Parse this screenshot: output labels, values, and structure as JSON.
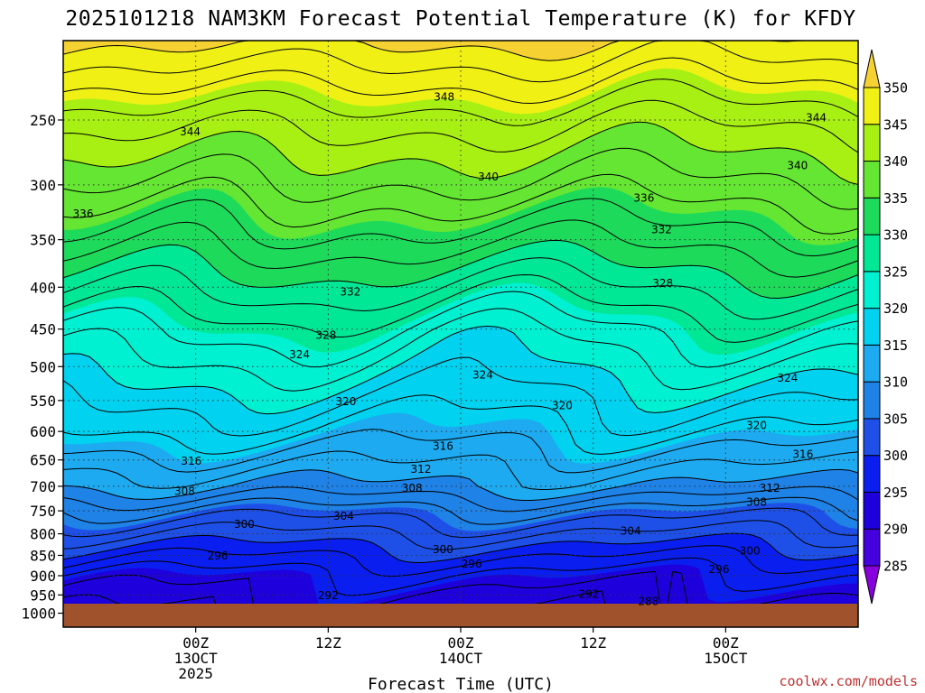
{
  "chart_data": {
    "type": "heatmap",
    "title": "2025101218 NAM3KM Forecast Potential Temperature (K) for KFDY",
    "xlabel": "Forecast Time (UTC)",
    "ylabel": "",
    "credit": "coolwx.com/models",
    "y_axis": {
      "scale": "log-pressure",
      "inverted": true,
      "ticks": [
        "250",
        "300",
        "350",
        "400",
        "450",
        "500",
        "550",
        "600",
        "650",
        "700",
        "750",
        "800",
        "850",
        "900",
        "950",
        "1000"
      ],
      "range": [
        1000,
        200
      ]
    },
    "x_axis": {
      "units": "forecast hours",
      "range": [
        -6,
        66
      ],
      "ticks": [
        {
          "hour": 6,
          "label": "00Z",
          "date": "13OCT",
          "year": "2025"
        },
        {
          "hour": 18,
          "label": "12Z",
          "date": "",
          "year": ""
        },
        {
          "hour": 30,
          "label": "00Z",
          "date": "14OCT",
          "year": ""
        },
        {
          "hour": 42,
          "label": "12Z",
          "date": "",
          "year": ""
        },
        {
          "hour": 54,
          "label": "00Z",
          "date": "15OCT",
          "year": ""
        }
      ]
    },
    "grid": true,
    "colorbar": {
      "levels": [
        "285",
        "290",
        "295",
        "300",
        "305",
        "310",
        "315",
        "320",
        "325",
        "330",
        "335",
        "340",
        "345",
        "350"
      ],
      "colors": [
        "#8800dd",
        "#4400dd",
        "#1e00dd",
        "#0a1ef0",
        "#1e50e8",
        "#1e82e6",
        "#1eaaf0",
        "#00d2f0",
        "#00f0d2",
        "#00e896",
        "#1eda5a",
        "#64e632",
        "#a8f014",
        "#f0f014",
        "#f5d232"
      ]
    },
    "surface_color": "#a0522d",
    "theta_profile": [
      {
        "p": 1000,
        "theta": 292.0
      },
      {
        "p": 950,
        "theta": 293.5
      },
      {
        "p": 900,
        "theta": 295.5
      },
      {
        "p": 850,
        "theta": 298.5
      },
      {
        "p": 800,
        "theta": 302.0
      },
      {
        "p": 750,
        "theta": 305.5
      },
      {
        "p": 700,
        "theta": 310.0
      },
      {
        "p": 650,
        "theta": 313.0
      },
      {
        "p": 600,
        "theta": 316.0
      },
      {
        "p": 550,
        "theta": 318.5
      },
      {
        "p": 500,
        "theta": 321.5
      },
      {
        "p": 450,
        "theta": 324.5
      },
      {
        "p": 400,
        "theta": 328.5
      },
      {
        "p": 350,
        "theta": 333.0
      },
      {
        "p": 300,
        "theta": 337.5
      },
      {
        "p": 250,
        "theta": 342.5
      },
      {
        "p": 200,
        "theta": 350.0
      }
    ],
    "contour_labels": [
      {
        "text": "348",
        "hour": 28.5,
        "p": 234
      },
      {
        "text": "344",
        "hour": 5.5,
        "p": 258
      },
      {
        "text": "344",
        "hour": 62.2,
        "p": 248
      },
      {
        "text": "340",
        "hour": 32.5,
        "p": 293
      },
      {
        "text": "340",
        "hour": 60.5,
        "p": 284
      },
      {
        "text": "336",
        "hour": -4.2,
        "p": 325
      },
      {
        "text": "336",
        "hour": 46.6,
        "p": 311
      },
      {
        "text": "332",
        "hour": 48.2,
        "p": 340
      },
      {
        "text": "332",
        "hour": 20.0,
        "p": 405
      },
      {
        "text": "328",
        "hour": 17.8,
        "p": 457
      },
      {
        "text": "328",
        "hour": 48.3,
        "p": 395
      },
      {
        "text": "324",
        "hour": 15.4,
        "p": 483
      },
      {
        "text": "324",
        "hour": 32.0,
        "p": 511
      },
      {
        "text": "324",
        "hour": 59.6,
        "p": 516
      },
      {
        "text": "320",
        "hour": 19.6,
        "p": 551
      },
      {
        "text": "320",
        "hour": 39.2,
        "p": 557
      },
      {
        "text": "320",
        "hour": 56.8,
        "p": 589
      },
      {
        "text": "316",
        "hour": 5.6,
        "p": 651
      },
      {
        "text": "316",
        "hour": 28.4,
        "p": 625
      },
      {
        "text": "316",
        "hour": 61.0,
        "p": 639
      },
      {
        "text": "312",
        "hour": 26.4,
        "p": 666
      },
      {
        "text": "312",
        "hour": 58.0,
        "p": 703
      },
      {
        "text": "308",
        "hour": 5.0,
        "p": 709
      },
      {
        "text": "308",
        "hour": 25.6,
        "p": 703
      },
      {
        "text": "308",
        "hour": 56.8,
        "p": 731
      },
      {
        "text": "304",
        "hour": 19.4,
        "p": 760
      },
      {
        "text": "304",
        "hour": 45.4,
        "p": 793
      },
      {
        "text": "300",
        "hour": 10.4,
        "p": 778
      },
      {
        "text": "300",
        "hour": 28.4,
        "p": 835
      },
      {
        "text": "300",
        "hour": 56.2,
        "p": 838
      },
      {
        "text": "296",
        "hour": 8.0,
        "p": 850
      },
      {
        "text": "296",
        "hour": 31.0,
        "p": 870
      },
      {
        "text": "296",
        "hour": 53.4,
        "p": 883
      },
      {
        "text": "292",
        "hour": 18.0,
        "p": 950
      },
      {
        "text": "292",
        "hour": 41.6,
        "p": 947
      },
      {
        "text": "288",
        "hour": 47.0,
        "p": 966
      }
    ]
  }
}
